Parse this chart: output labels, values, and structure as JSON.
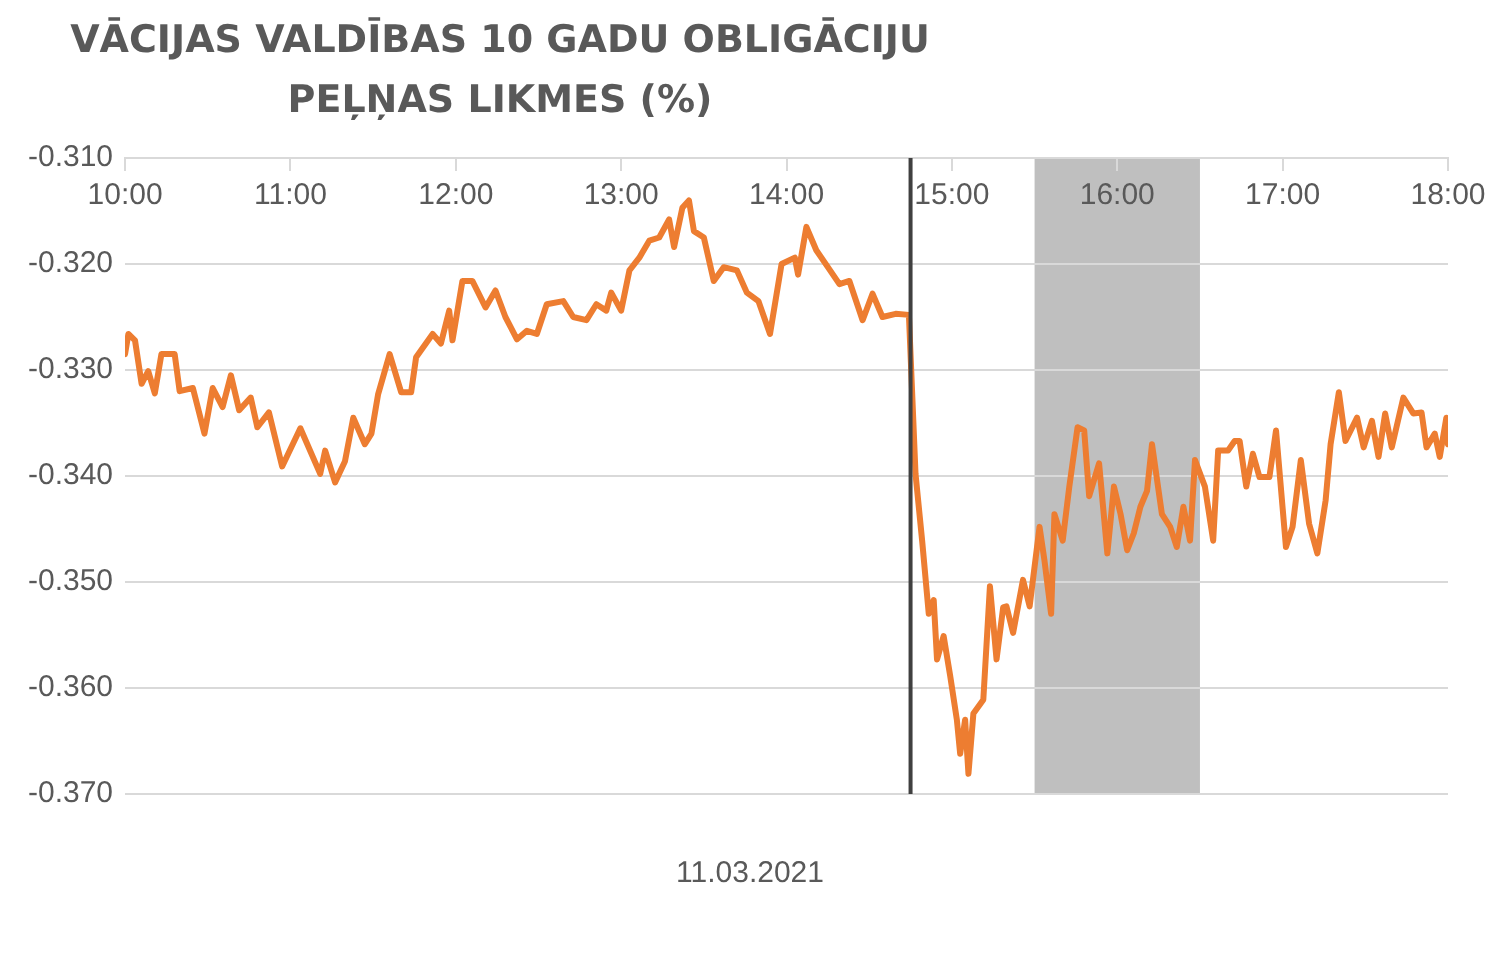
{
  "chart_data": {
    "type": "line",
    "title": "VĀCIJAS VALDĪBAS 10 GADU OBLIGĀCIJU PEĻŅAS LIKMES (%)",
    "xlabel": "11.03.2021",
    "x": [
      10.0,
      10.02,
      10.06,
      10.1,
      10.14,
      10.18,
      10.22,
      10.3,
      10.33,
      10.41,
      10.48,
      10.53,
      10.59,
      10.64,
      10.69,
      10.76,
      10.8,
      10.87,
      10.95,
      11.06,
      11.18,
      11.21,
      11.27,
      11.33,
      11.38,
      11.45,
      11.49,
      11.53,
      11.6,
      11.67,
      11.73,
      11.76,
      11.86,
      11.91,
      11.96,
      11.98,
      12.04,
      12.1,
      12.18,
      12.24,
      12.3,
      12.37,
      12.43,
      12.49,
      12.55,
      12.65,
      12.71,
      12.79,
      12.85,
      12.91,
      12.94,
      13.0,
      13.05,
      13.11,
      13.17,
      13.23,
      13.29,
      13.32,
      13.37,
      13.41,
      13.44,
      13.5,
      13.56,
      13.62,
      13.7,
      13.76,
      13.83,
      13.9,
      13.97,
      14.05,
      14.07,
      14.12,
      14.18,
      14.25,
      14.32,
      14.38,
      14.46,
      14.52,
      14.58,
      14.66,
      14.74,
      14.78,
      14.82,
      14.86,
      14.89,
      14.91,
      14.95,
      14.99,
      15.03,
      15.05,
      15.08,
      15.1,
      15.13,
      15.19,
      15.23,
      15.27,
      15.31,
      15.33,
      15.37,
      15.43,
      15.47,
      15.53,
      15.56,
      15.6,
      15.62,
      15.67,
      15.71,
      15.76,
      15.8,
      15.83,
      15.89,
      15.94,
      15.98,
      16.02,
      16.06,
      16.1,
      16.14,
      16.18,
      16.21,
      16.27,
      16.32,
      16.36,
      16.4,
      16.44,
      16.47,
      16.53,
      16.58,
      16.61,
      16.67,
      16.71,
      16.74,
      16.78,
      16.82,
      16.86,
      16.92,
      16.96,
      17.02,
      17.06,
      17.11,
      17.16,
      17.21,
      17.26,
      17.29,
      17.34,
      17.38,
      17.45,
      17.49,
      17.54,
      17.58,
      17.62,
      17.66,
      17.73,
      17.79,
      17.84,
      17.87,
      17.92,
      17.95,
      17.99,
      18.0
    ],
    "series": [
      {
        "color": "#ed7d31",
        "values": [
          -0.3285,
          -0.3266,
          -0.3272,
          -0.3313,
          -0.3301,
          -0.3322,
          -0.3285,
          -0.3285,
          -0.332,
          -0.3317,
          -0.336,
          -0.3317,
          -0.3335,
          -0.3305,
          -0.3338,
          -0.3326,
          -0.3354,
          -0.334,
          -0.3391,
          -0.3355,
          -0.3398,
          -0.3376,
          -0.3406,
          -0.3386,
          -0.3345,
          -0.337,
          -0.336,
          -0.3323,
          -0.3285,
          -0.3321,
          -0.3321,
          -0.3288,
          -0.3266,
          -0.3275,
          -0.3244,
          -0.3272,
          -0.3216,
          -0.3216,
          -0.3241,
          -0.3225,
          -0.325,
          -0.3271,
          -0.3263,
          -0.3266,
          -0.3238,
          -0.3235,
          -0.325,
          -0.3253,
          -0.3238,
          -0.3244,
          -0.3227,
          -0.3244,
          -0.3206,
          -0.3194,
          -0.3178,
          -0.3175,
          -0.3158,
          -0.3184,
          -0.3147,
          -0.314,
          -0.3169,
          -0.3175,
          -0.3216,
          -0.3203,
          -0.3206,
          -0.3227,
          -0.3235,
          -0.3266,
          -0.32,
          -0.3194,
          -0.321,
          -0.3165,
          -0.3187,
          -0.3203,
          -0.3219,
          -0.3216,
          -0.3253,
          -0.3228,
          -0.325,
          -0.3247,
          -0.3248,
          -0.3398,
          -0.3461,
          -0.353,
          -0.3517,
          -0.3573,
          -0.3551,
          -0.3589,
          -0.363,
          -0.3662,
          -0.363,
          -0.3681,
          -0.3624,
          -0.3611,
          -0.3504,
          -0.3573,
          -0.3524,
          -0.3523,
          -0.3548,
          -0.3498,
          -0.3523,
          -0.3448,
          -0.348,
          -0.353,
          -0.3436,
          -0.3461,
          -0.341,
          -0.3354,
          -0.3357,
          -0.3419,
          -0.3388,
          -0.3473,
          -0.341,
          -0.3436,
          -0.347,
          -0.3454,
          -0.3429,
          -0.3414,
          -0.337,
          -0.3436,
          -0.3448,
          -0.3467,
          -0.3429,
          -0.3461,
          -0.3385,
          -0.341,
          -0.3461,
          -0.3376,
          -0.3376,
          -0.3367,
          -0.3367,
          -0.341,
          -0.3379,
          -0.3401,
          -0.3401,
          -0.3357,
          -0.3467,
          -0.3448,
          -0.3385,
          -0.3445,
          -0.3473,
          -0.3423,
          -0.337,
          -0.3321,
          -0.3367,
          -0.3345,
          -0.3373,
          -0.3348,
          -0.3382,
          -0.3341,
          -0.3373,
          -0.3326,
          -0.3341,
          -0.334,
          -0.3373,
          -0.336,
          -0.3382,
          -0.3345,
          -0.337
        ]
      }
    ],
    "xlim": [
      10,
      18
    ],
    "xticks": [
      {
        "value": 10,
        "label": "10:00"
      },
      {
        "value": 11,
        "label": "11:00"
      },
      {
        "value": 12,
        "label": "12:00"
      },
      {
        "value": 13,
        "label": "13:00"
      },
      {
        "value": 14,
        "label": "14:00"
      },
      {
        "value": 15,
        "label": "15:00"
      },
      {
        "value": 16,
        "label": "16:00"
      },
      {
        "value": 17,
        "label": "17:00"
      },
      {
        "value": 18,
        "label": "18:00"
      }
    ],
    "ylim": [
      -0.37,
      -0.31
    ],
    "yticks": [
      {
        "value": -0.37,
        "label": "-0.370"
      },
      {
        "value": -0.36,
        "label": "-0.360"
      },
      {
        "value": -0.35,
        "label": "-0.350"
      },
      {
        "value": -0.34,
        "label": "-0.340"
      },
      {
        "value": -0.33,
        "label": "-0.330"
      },
      {
        "value": -0.32,
        "label": "-0.320"
      },
      {
        "value": -0.31,
        "label": "-0.310"
      }
    ],
    "ref_lines": [
      {
        "axis": "x",
        "value": 14.75,
        "color": "#404040"
      }
    ],
    "bands": [
      {
        "axis": "x",
        "from": 15.5,
        "to": 16.5,
        "color": "#bfbfbf"
      }
    ],
    "grid": "y",
    "legend": false,
    "marker": "none",
    "line_style": "solid"
  }
}
